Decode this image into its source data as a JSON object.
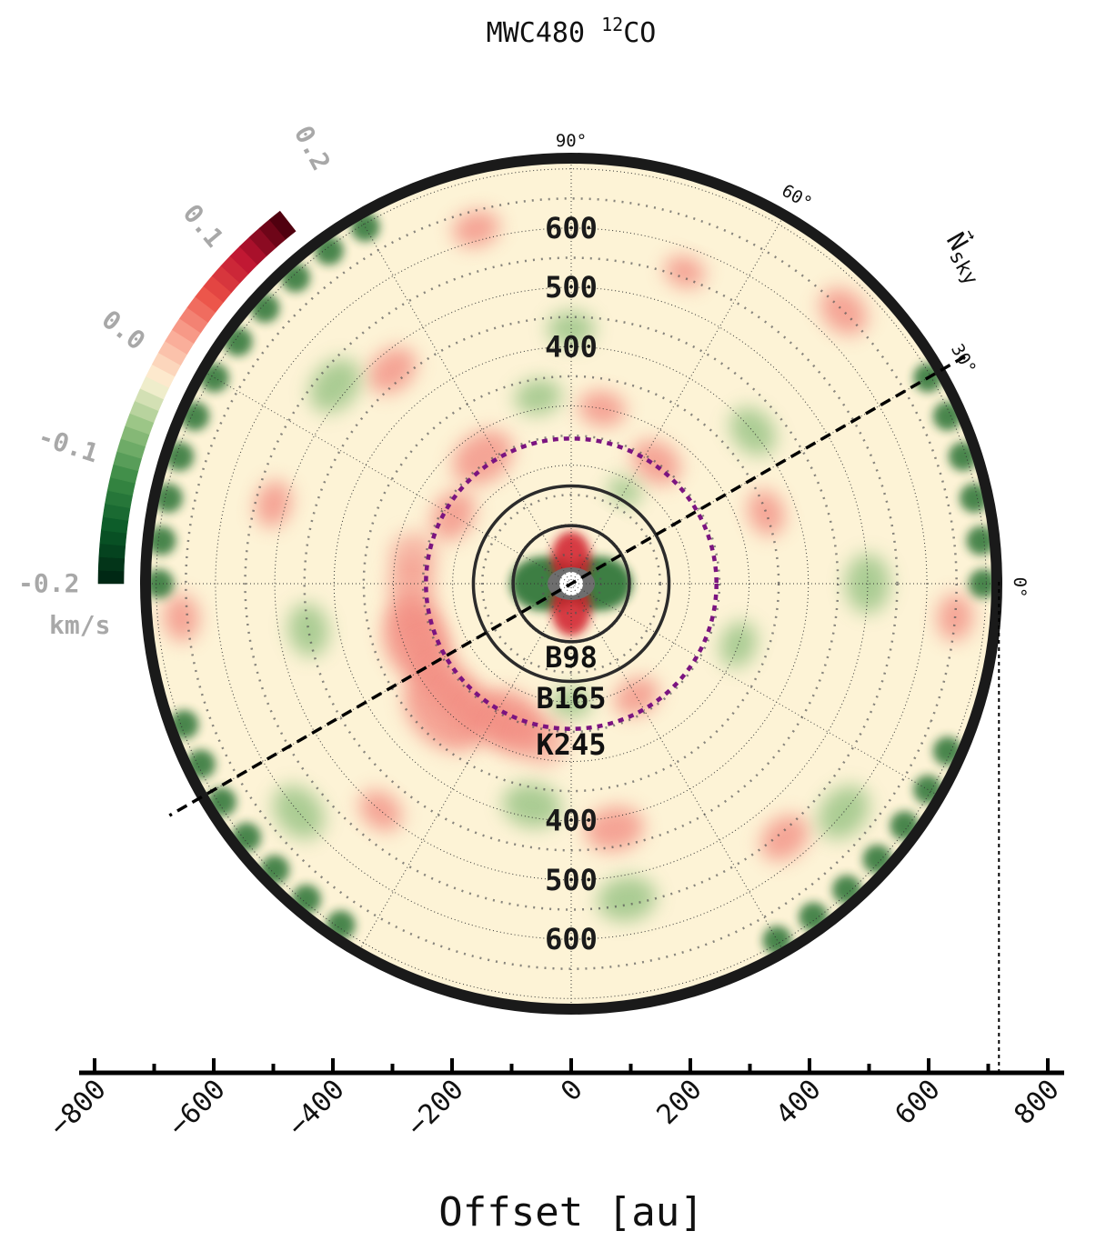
{
  "title": {
    "main": "MWC480 ",
    "sup": "12",
    "tail": "CO"
  },
  "colors": {
    "background": "#fdf3d6",
    "disk_edge": "#1a1a1a",
    "ring_solid": "#2b2b2b",
    "ring_dashed": "#7b1480",
    "sky_axis": "#000000",
    "cbar_text": "#a8a8a8",
    "red_blob": "#f28a80",
    "green_blob": "#8fbf7d",
    "dark_green": "#1c6a2a"
  },
  "chart_data": {
    "type": "heatmap",
    "projection": "polar deprojected disk map",
    "colormap": "red-green diverging (green = negative, cream = 0, dark red = positive)",
    "color_range": [
      -0.2,
      0.2
    ],
    "colorbar": {
      "ticks": [
        "-0.2",
        "-0.1",
        "0.0",
        "0.1",
        "0.2"
      ],
      "unit": "km/s",
      "placement": "arc, upper-left"
    },
    "radial_rings_au": [
      100,
      200,
      300,
      400,
      500,
      600,
      700
    ],
    "ring_labels_top": [
      "600",
      "500",
      "400"
    ],
    "ring_labels_bottom": [
      "400",
      "500",
      "600"
    ],
    "angle_labels": [
      "90°",
      "60°",
      "30°",
      "0°"
    ],
    "gaps": [
      {
        "name": "B98",
        "radius_au": 98,
        "style": "solid"
      },
      {
        "name": "B165",
        "radius_au": 165,
        "style": "solid"
      },
      {
        "name": "K245",
        "radius_au": 245,
        "style": "dashed"
      }
    ],
    "disk_outer_radius_au": 718,
    "sky_north_axis": {
      "label_main": "N",
      "label_sub": "sky",
      "angle_deg": 30
    },
    "x_axis": {
      "label": "Offset [au]",
      "range": [
        -800,
        800
      ],
      "ticks": [
        -800,
        -600,
        -400,
        -200,
        0,
        200,
        400,
        600,
        800
      ],
      "tick_labels": [
        "−800",
        "−600",
        "−400",
        "−200",
        "0",
        "200",
        "400",
        "600",
        "800"
      ]
    },
    "blobs": [
      {
        "r_au": 280,
        "angle_deg": 200,
        "size_au": 70,
        "sign": "positive"
      },
      {
        "r_au": 300,
        "angle_deg": 225,
        "size_au": 80,
        "sign": "positive"
      },
      {
        "r_au": 250,
        "angle_deg": 245,
        "size_au": 60,
        "sign": "positive"
      },
      {
        "r_au": 260,
        "angle_deg": 125,
        "size_au": 55,
        "sign": "positive"
      },
      {
        "r_au": 230,
        "angle_deg": 150,
        "size_au": 45,
        "sign": "positive"
      },
      {
        "r_au": 300,
        "angle_deg": 80,
        "size_au": 40,
        "sign": "positive"
      },
      {
        "r_au": 250,
        "angle_deg": 55,
        "size_au": 45,
        "sign": "positive"
      },
      {
        "r_au": 220,
        "angle_deg": 300,
        "size_au": 40,
        "sign": "positive"
      },
      {
        "r_au": 350,
        "angle_deg": 20,
        "size_au": 40,
        "sign": "positive"
      },
      {
        "r_au": 420,
        "angle_deg": 280,
        "size_au": 50,
        "sign": "positive"
      },
      {
        "r_au": 470,
        "angle_deg": 130,
        "size_au": 45,
        "sign": "positive"
      },
      {
        "r_au": 520,
        "angle_deg": 165,
        "size_au": 40,
        "sign": "positive"
      },
      {
        "r_au": 650,
        "angle_deg": 45,
        "size_au": 45,
        "sign": "positive"
      },
      {
        "r_au": 660,
        "angle_deg": 185,
        "size_au": 40,
        "sign": "positive"
      },
      {
        "r_au": 650,
        "angle_deg": 355,
        "size_au": 40,
        "sign": "positive"
      },
      {
        "r_au": 620,
        "angle_deg": 105,
        "size_au": 40,
        "sign": "positive"
      },
      {
        "r_au": 560,
        "angle_deg": 310,
        "size_au": 45,
        "sign": "positive"
      },
      {
        "r_au": 500,
        "angle_deg": 230,
        "size_au": 40,
        "sign": "positive"
      },
      {
        "r_au": 560,
        "angle_deg": 70,
        "size_au": 35,
        "sign": "positive"
      },
      {
        "r_au": 300,
        "angle_deg": 340,
        "size_au": 40,
        "sign": "negative"
      },
      {
        "r_au": 320,
        "angle_deg": 100,
        "size_au": 40,
        "sign": "negative"
      },
      {
        "r_au": 380,
        "angle_deg": 260,
        "size_au": 50,
        "sign": "negative"
      },
      {
        "r_au": 400,
        "angle_deg": 40,
        "size_au": 45,
        "sign": "negative"
      },
      {
        "r_au": 450,
        "angle_deg": 190,
        "size_au": 45,
        "sign": "negative"
      },
      {
        "r_au": 500,
        "angle_deg": 0,
        "size_au": 50,
        "sign": "negative"
      },
      {
        "r_au": 520,
        "angle_deg": 140,
        "size_au": 50,
        "sign": "negative"
      },
      {
        "r_au": 540,
        "angle_deg": 280,
        "size_au": 50,
        "sign": "negative"
      },
      {
        "r_au": 600,
        "angle_deg": 220,
        "size_au": 50,
        "sign": "negative"
      },
      {
        "r_au": 600,
        "angle_deg": 320,
        "size_au": 50,
        "sign": "negative"
      },
      {
        "r_au": 430,
        "angle_deg": 90,
        "size_au": 40,
        "sign": "negative"
      },
      {
        "r_au": 180,
        "angle_deg": 60,
        "size_au": 30,
        "sign": "negative"
      },
      {
        "r_au": 200,
        "angle_deg": 270,
        "size_au": 35,
        "sign": "negative"
      }
    ],
    "edge_dark_green_arcs": [
      {
        "from_deg": 120,
        "to_deg": 180
      },
      {
        "from_deg": 0,
        "to_deg": 30
      },
      {
        "from_deg": 200,
        "to_deg": 240
      },
      {
        "from_deg": 300,
        "to_deg": 340
      }
    ],
    "center_structure": {
      "inner_green_lobes_deg": [
        0,
        180
      ],
      "inner_red_lobes_deg": [
        90,
        270
      ],
      "note": "Four-lobed pattern inside B98"
    }
  }
}
